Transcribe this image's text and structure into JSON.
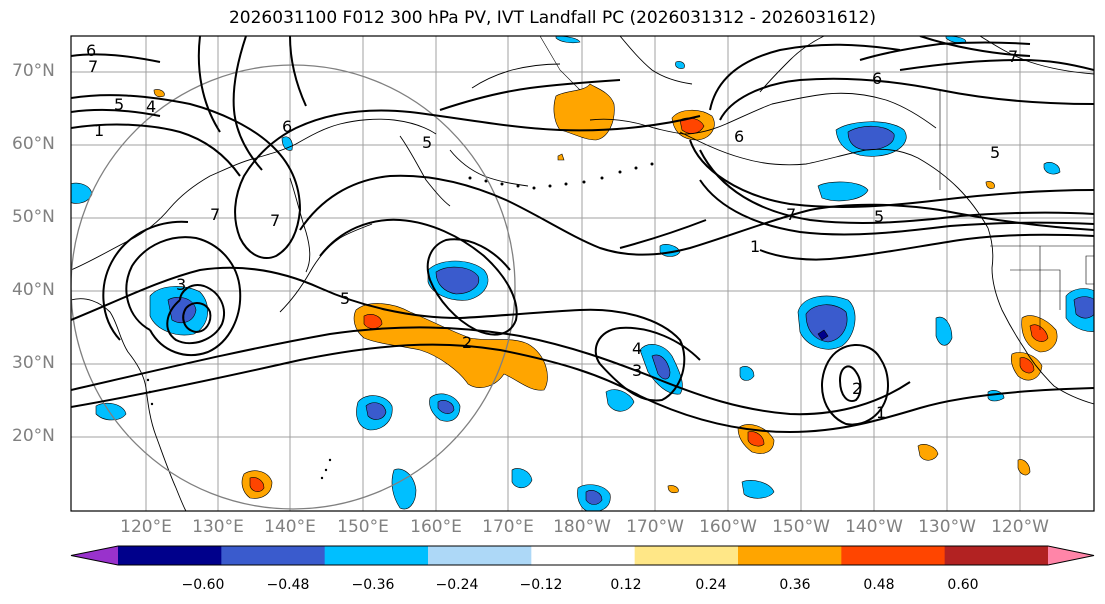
{
  "title": "2026031100 F012 300 hPa PV, IVT Landfall PC (2026031312 - 2026031612)",
  "map": {
    "region": "North Pacific",
    "lat_labels": [
      "70°N",
      "60°N",
      "50°N",
      "40°N",
      "30°N",
      "20°N"
    ],
    "lon_labels": [
      "120°E",
      "130°E",
      "140°E",
      "150°E",
      "160°E",
      "170°E",
      "180°W",
      "170°W",
      "160°W",
      "150°W",
      "140°W",
      "130°W",
      "120°W"
    ],
    "contour_labels": [
      "1",
      "2",
      "3",
      "4",
      "5",
      "6",
      "7"
    ]
  },
  "colorbar": {
    "ticks": [
      "−0.60",
      "−0.48",
      "−0.36",
      "−0.24",
      "−0.12",
      "0.12",
      "0.24",
      "0.36",
      "0.48",
      "0.60"
    ],
    "colors": [
      "#9932cc",
      "#00008b",
      "#3a5bcd",
      "#00bfff",
      "#add8f7",
      "#ffffff",
      "#ffe787",
      "#ffa500",
      "#ff4500",
      "#b22222",
      "#ff85a8"
    ]
  }
}
